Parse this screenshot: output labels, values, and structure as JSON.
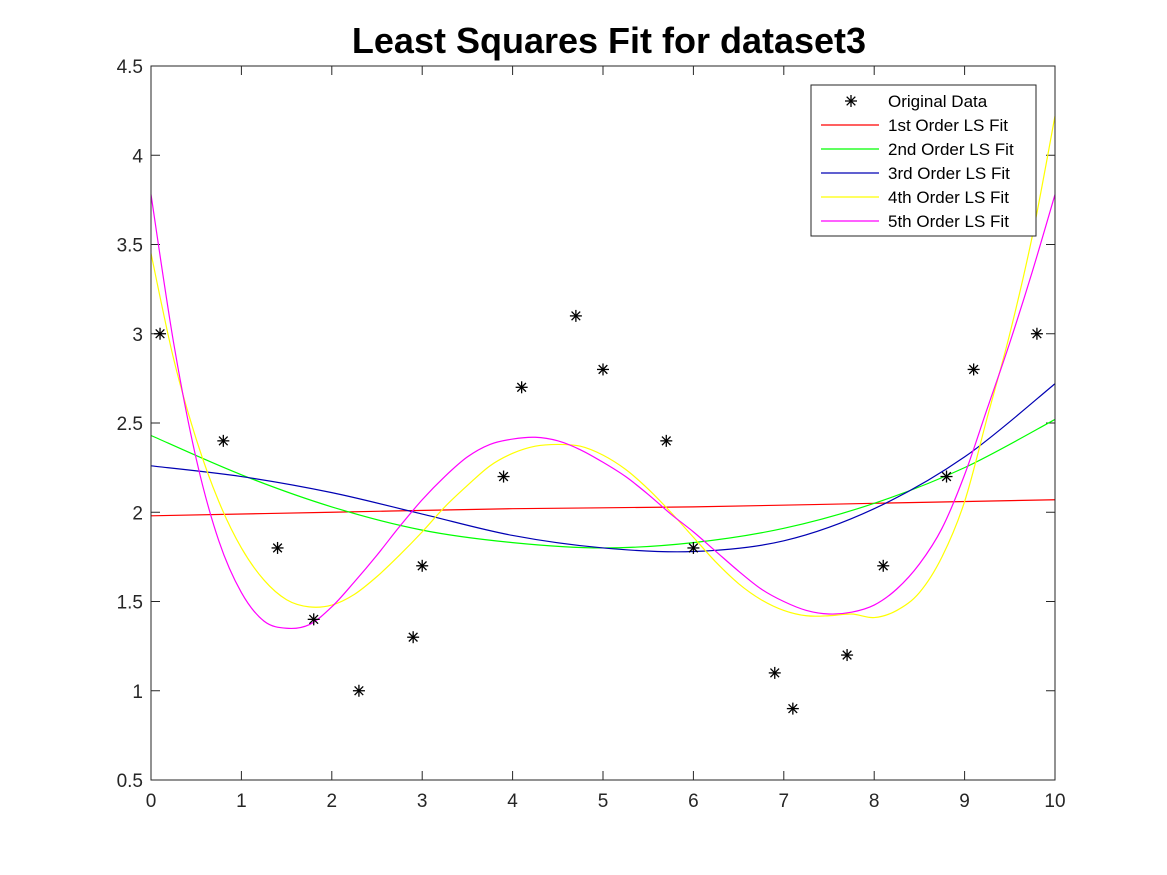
{
  "chart_data": {
    "type": "line",
    "title": "Least Squares Fit for dataset3",
    "xlabel": "",
    "ylabel": "",
    "xlim": [
      0,
      10
    ],
    "ylim": [
      0.5,
      4.5
    ],
    "x_ticks": [
      0,
      1,
      2,
      3,
      4,
      5,
      6,
      7,
      8,
      9,
      10
    ],
    "y_ticks": [
      0.5,
      1,
      1.5,
      2,
      2.5,
      3,
      3.5,
      4,
      4.5
    ],
    "y_tick_labels": [
      "0.5",
      "1",
      "1.5",
      "2",
      "2.5",
      "3",
      "3.5",
      "4",
      "4.5"
    ],
    "grid": false,
    "legend_position": "top-right",
    "scatter": {
      "name": "Original Data",
      "marker": "asterisk",
      "color": "#000000",
      "x": [
        0.1,
        0.8,
        1.4,
        1.8,
        2.3,
        2.9,
        3.0,
        3.9,
        4.1,
        4.7,
        5.0,
        5.7,
        6.0,
        6.9,
        7.1,
        7.7,
        8.1,
        8.8,
        9.1,
        9.8
      ],
      "y": [
        3.0,
        2.4,
        1.8,
        1.4,
        1.0,
        1.3,
        1.7,
        2.2,
        2.7,
        3.1,
        2.8,
        2.4,
        1.8,
        1.1,
        0.9,
        1.2,
        1.7,
        2.2,
        2.8,
        3.0
      ]
    },
    "series": [
      {
        "name": "1st Order LS Fit",
        "color": "#ff0000",
        "x": [
          0,
          2,
          4,
          6,
          8,
          10
        ],
        "y": [
          1.98,
          2.0,
          2.02,
          2.03,
          2.05,
          2.07
        ]
      },
      {
        "name": "2nd Order LS Fit",
        "color": "#00ff00",
        "x": [
          0,
          1,
          2,
          3,
          4,
          5,
          6,
          7,
          8,
          9,
          10
        ],
        "y": [
          2.43,
          2.21,
          2.03,
          1.9,
          1.83,
          1.8,
          1.83,
          1.91,
          2.05,
          2.25,
          2.52
        ]
      },
      {
        "name": "3rd Order LS Fit",
        "color": "#0000b3",
        "x": [
          0,
          1,
          2,
          3,
          4,
          5,
          6,
          7,
          8,
          9,
          10
        ],
        "y": [
          2.26,
          2.2,
          2.11,
          1.99,
          1.87,
          1.8,
          1.78,
          1.84,
          2.02,
          2.31,
          2.72
        ]
      },
      {
        "name": "4th Order LS Fit",
        "color": "#ffff00",
        "x": [
          0,
          0.25,
          0.5,
          0.75,
          1,
          1.25,
          1.5,
          1.75,
          2,
          2.25,
          2.5,
          2.75,
          3,
          3.25,
          3.5,
          3.75,
          4,
          4.25,
          4.5,
          4.75,
          5,
          5.25,
          5.5,
          5.75,
          6,
          6.25,
          6.5,
          6.75,
          7,
          7.25,
          7.5,
          7.75,
          8,
          8.25,
          8.5,
          8.75,
          9,
          9.25,
          9.5,
          9.75,
          10
        ],
        "y": [
          3.45,
          2.86,
          2.41,
          2.06,
          1.8,
          1.62,
          1.51,
          1.47,
          1.48,
          1.54,
          1.64,
          1.76,
          1.89,
          2.03,
          2.15,
          2.26,
          2.33,
          2.37,
          2.38,
          2.37,
          2.32,
          2.24,
          2.13,
          2.0,
          1.86,
          1.72,
          1.6,
          1.51,
          1.45,
          1.42,
          1.42,
          1.43,
          1.41,
          1.45,
          1.55,
          1.75,
          2.06,
          2.53,
          3.0,
          3.55,
          4.22
        ]
      },
      {
        "name": "5th Order LS Fit",
        "color": "#ff00ff",
        "x": [
          0,
          0.25,
          0.5,
          0.75,
          1,
          1.25,
          1.5,
          1.75,
          2,
          2.25,
          2.5,
          2.75,
          3,
          3.25,
          3.5,
          3.75,
          4,
          4.25,
          4.5,
          4.75,
          5,
          5.25,
          5.5,
          5.75,
          6,
          6.25,
          6.5,
          6.75,
          7,
          7.25,
          7.5,
          7.75,
          8,
          8.25,
          8.5,
          8.75,
          9,
          9.25,
          9.5,
          9.75,
          10
        ],
        "y": [
          3.78,
          2.95,
          2.3,
          1.84,
          1.55,
          1.39,
          1.35,
          1.37,
          1.47,
          1.61,
          1.76,
          1.92,
          2.07,
          2.2,
          2.31,
          2.38,
          2.41,
          2.42,
          2.4,
          2.35,
          2.28,
          2.2,
          2.1,
          1.99,
          1.89,
          1.78,
          1.67,
          1.57,
          1.5,
          1.45,
          1.43,
          1.44,
          1.48,
          1.57,
          1.71,
          1.91,
          2.21,
          2.58,
          2.95,
          3.35,
          3.78
        ]
      }
    ]
  }
}
